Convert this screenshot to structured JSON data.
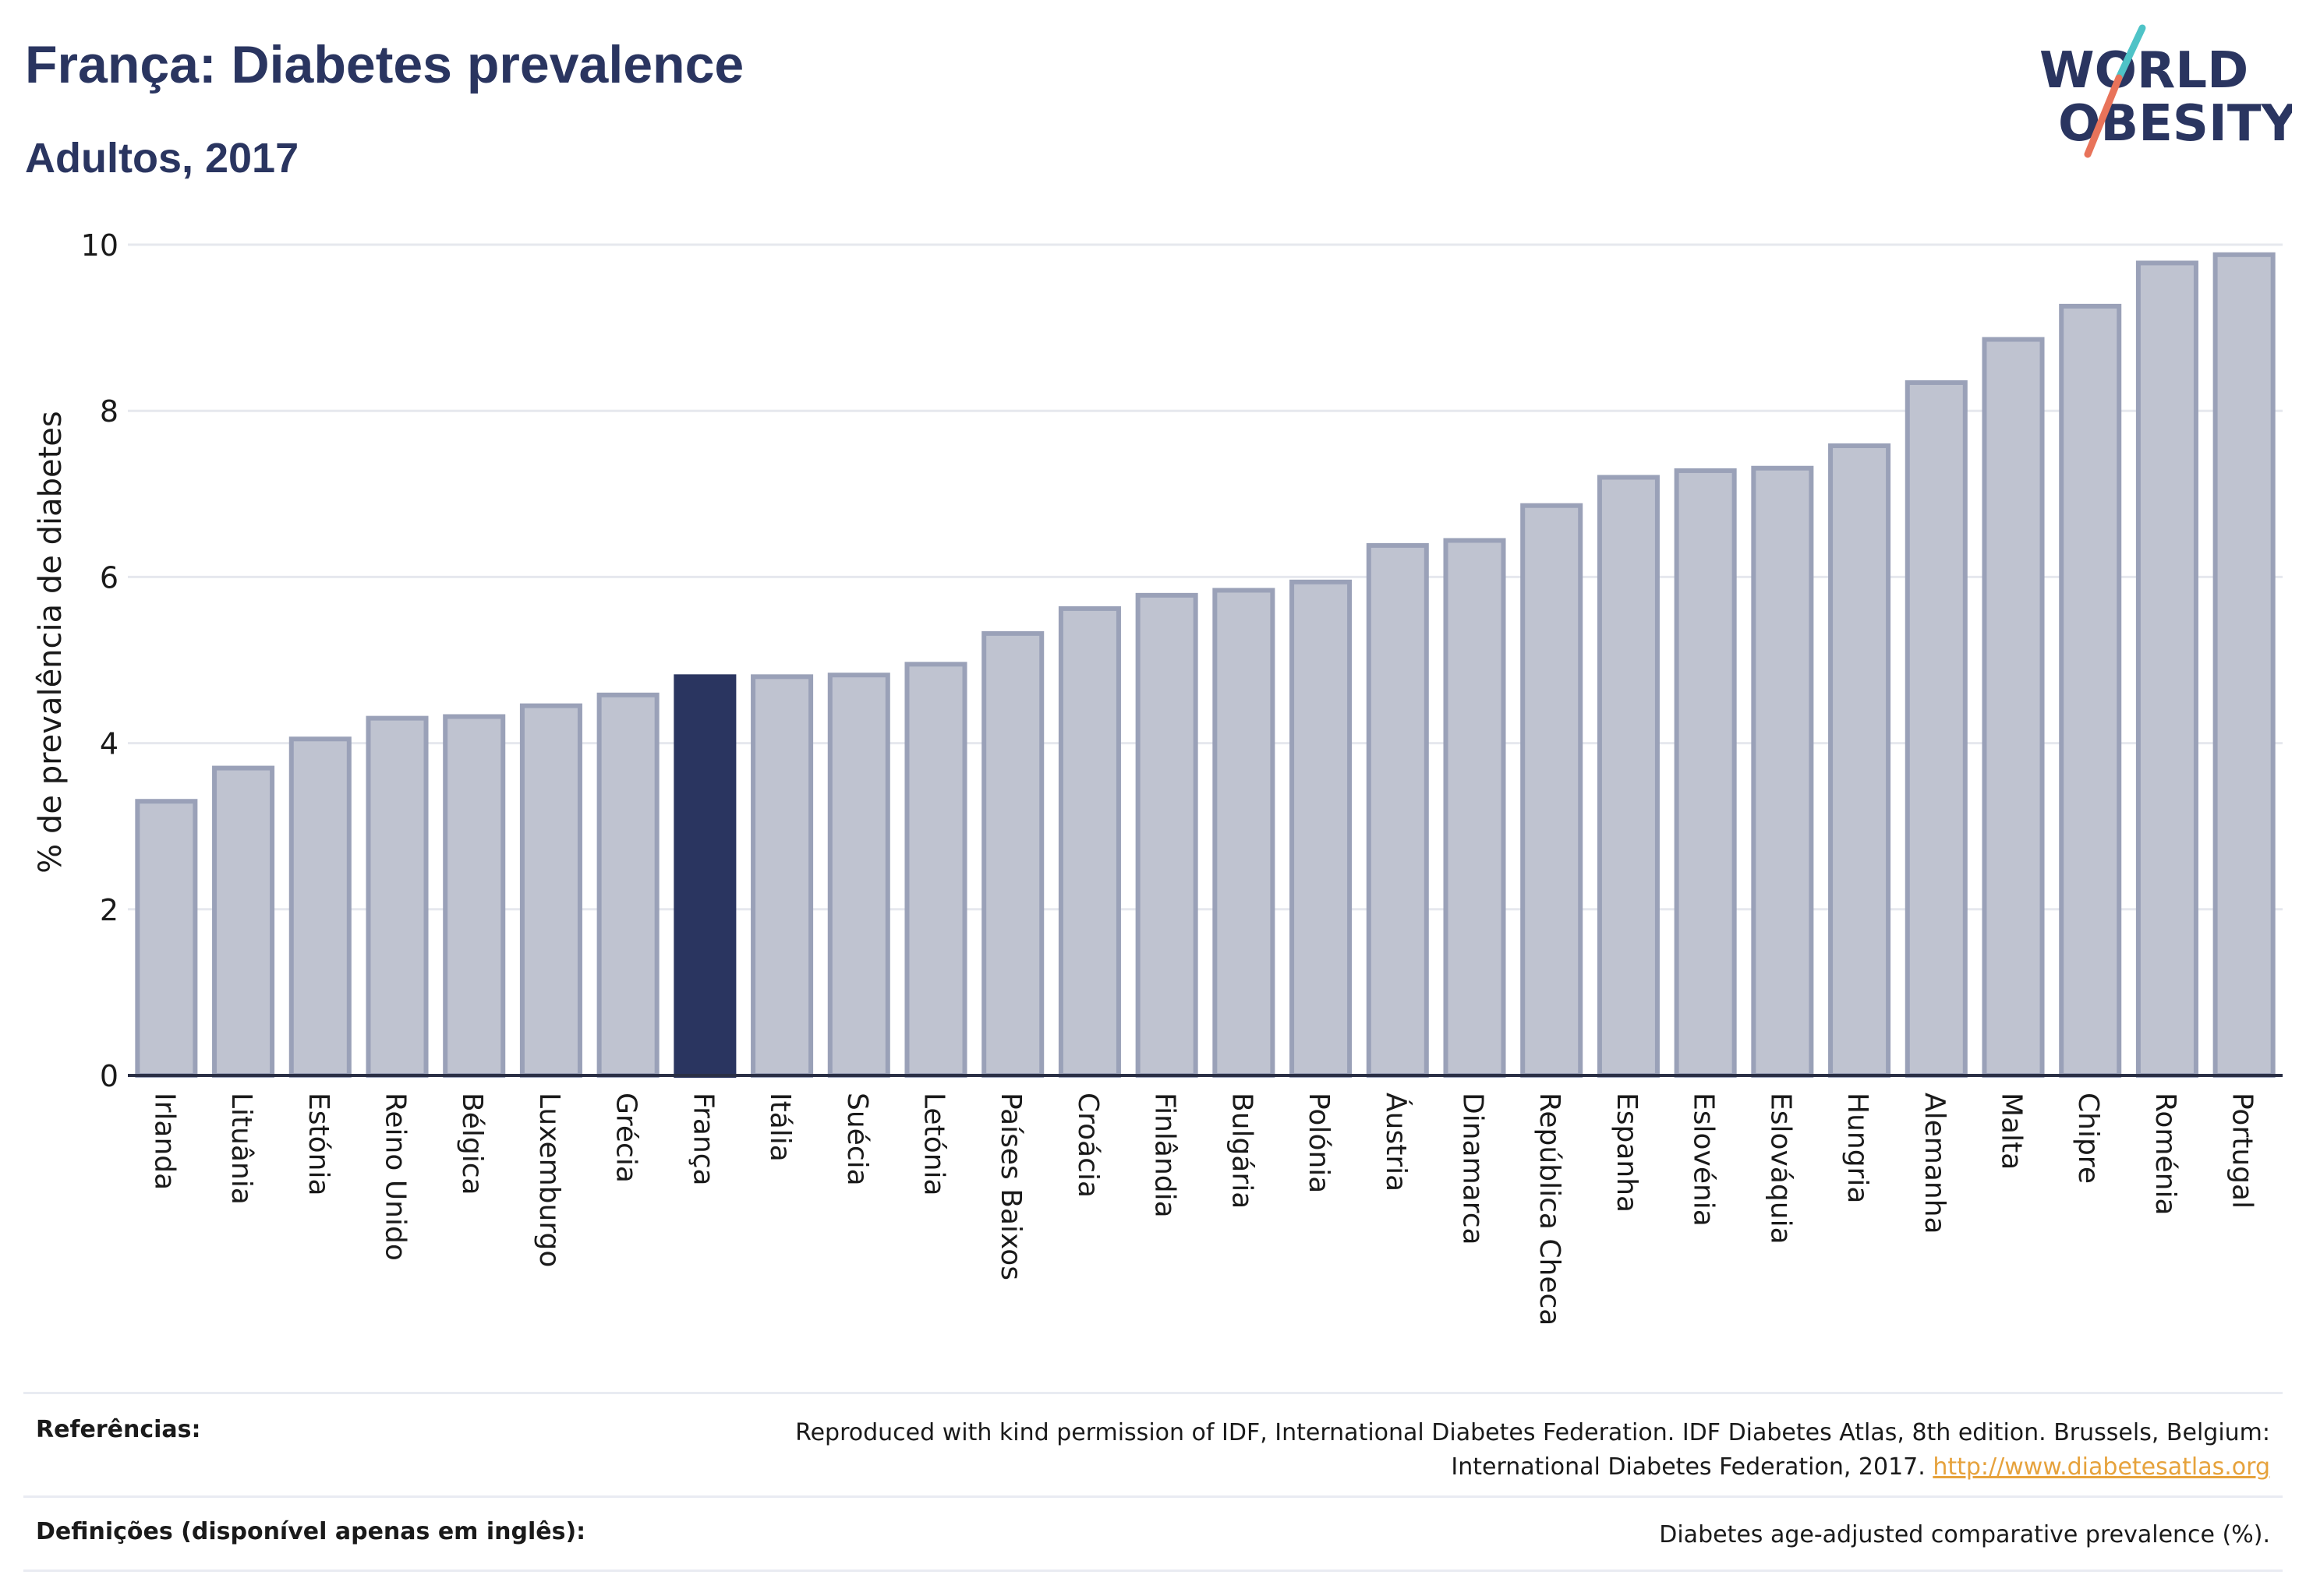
{
  "header": {
    "title": "França: Diabetes prevalence",
    "subtitle": "Adultos, 2017"
  },
  "logo": {
    "line1": "WORLD",
    "line2": "OBESITY",
    "slash_colors": [
      "#4ec3c7",
      "#e8735a"
    ]
  },
  "colors": {
    "bar_fill": "#bfc3d0",
    "bar_stroke": "#9aa1b8",
    "highlight_fill": "#2a3560",
    "text": "#2a3560",
    "grid": "#e6e8ee",
    "link": "#e6a23c"
  },
  "chart_data": {
    "type": "bar",
    "ylabel": "% de prevalência de diabetes",
    "ylim": [
      0,
      10
    ],
    "yticks": [
      0,
      2,
      4,
      6,
      8,
      10
    ],
    "grid": true,
    "highlight": "França",
    "categories": [
      "Irlanda",
      "Lituânia",
      "Estónia",
      "Reino Unido",
      "Bélgica",
      "Luxemburgo",
      "Grécia",
      "França",
      "Itália",
      "Suécia",
      "Letónia",
      "Países Baixos",
      "Croácia",
      "Finlândia",
      "Bulgária",
      "Polónia",
      "Áustria",
      "Dinamarca",
      "República Checa",
      "Espanha",
      "Eslovénia",
      "Eslováquia",
      "Hungria",
      "Alemanha",
      "Malta",
      "Chipre",
      "Roménia",
      "Portugal"
    ],
    "values": [
      3.3,
      3.7,
      4.05,
      4.3,
      4.32,
      4.45,
      4.58,
      4.8,
      4.8,
      4.82,
      4.95,
      5.32,
      5.62,
      5.78,
      5.84,
      5.94,
      6.38,
      6.44,
      6.86,
      7.2,
      7.28,
      7.31,
      7.58,
      8.34,
      8.86,
      9.26,
      9.78,
      9.88
    ]
  },
  "references": {
    "label": "Referências:",
    "text_line1": "Reproduced with kind permission of IDF, International Diabetes Federation. IDF Diabetes Atlas, 8th edition. Brussels, Belgium:",
    "text_line2": "International Diabetes Federation, 2017.",
    "link": "http://www.diabetesatlas.org"
  },
  "definitions": {
    "label": "Definições (disponível apenas em inglês):",
    "text": "Diabetes age-adjusted comparative prevalence (%)."
  }
}
